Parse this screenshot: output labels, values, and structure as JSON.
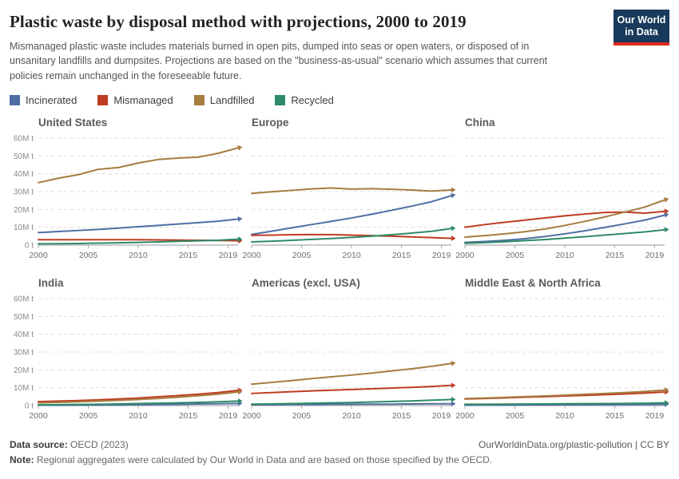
{
  "header": {
    "title": "Plastic waste by disposal method with projections, 2000 to 2019",
    "subtitle": "Mismanaged plastic waste includes materials burned in open pits, dumped into seas or open waters, or disposed of in unsanitary landfills and dumpsites. Projections are based on the \"business-as-usual\" scenario which assumes that current policies remain unchanged in the foreseeable future.",
    "logo_line1": "Our World",
    "logo_line2": "in Data",
    "logo_bg": "#183A5C",
    "logo_stripe": "#DB2B1E"
  },
  "legend": {
    "items": [
      {
        "label": "Incinerated",
        "color": "#4E6EA3"
      },
      {
        "label": "Mismanaged",
        "color": "#BF3B21"
      },
      {
        "label": "Landfilled",
        "color": "#A67C3F"
      },
      {
        "label": "Recycled",
        "color": "#2E8A68"
      }
    ]
  },
  "colors": {
    "incinerated": "#4E6EA3",
    "mismanaged": "#BF3B21",
    "landfilled": "#A67C3F",
    "recycled": "#2E8A68",
    "gridline": "#DCDCDC",
    "axis": "#ABABAB",
    "ytick_text": "#8a8a8a",
    "xtick_text": "#6e6e6e"
  },
  "axis": {
    "ylim": [
      0,
      60
    ],
    "yticks": [
      0,
      10,
      20,
      30,
      40,
      50,
      60
    ],
    "ytick_unit": "M t",
    "ytick_zero": "0 t",
    "xlim": [
      2000,
      2020
    ],
    "xticks": [
      2000,
      2005,
      2010,
      2015,
      2019
    ],
    "grid": "dashed-horizontal",
    "legend_position": "top"
  },
  "chart_data": [
    {
      "type": "line",
      "title": "United States",
      "x": [
        2000,
        2002,
        2004,
        2006,
        2008,
        2010,
        2012,
        2014,
        2016,
        2018,
        2019
      ],
      "series": [
        {
          "name": "incinerated",
          "values": [
            7,
            7.6,
            8.2,
            8.8,
            9.5,
            10.3,
            11,
            11.8,
            12.6,
            13.4,
            14
          ]
        },
        {
          "name": "mismanaged",
          "values": [
            3,
            3,
            3,
            3,
            3,
            3,
            2.9,
            2.8,
            2.7,
            2.6,
            2.5
          ]
        },
        {
          "name": "landfilled",
          "values": [
            35,
            37.5,
            39.5,
            42.5,
            43.5,
            46,
            48,
            48.8,
            49.3,
            51.5,
            53
          ]
        },
        {
          "name": "recycled",
          "values": [
            0.7,
            0.8,
            0.9,
            1.1,
            1.3,
            1.5,
            1.8,
            2.1,
            2.4,
            2.7,
            3
          ]
        }
      ]
    },
    {
      "type": "line",
      "title": "Europe",
      "x": [
        2000,
        2002,
        2004,
        2006,
        2008,
        2010,
        2012,
        2014,
        2016,
        2018,
        2019
      ],
      "series": [
        {
          "name": "incinerated",
          "values": [
            6,
            7.8,
            9.7,
            11.5,
            13.3,
            15.2,
            17.3,
            19.5,
            21.8,
            24.3,
            26
          ]
        },
        {
          "name": "mismanaged",
          "values": [
            5.5,
            5.6,
            5.8,
            5.9,
            5.9,
            5.6,
            5.3,
            5,
            4.6,
            4.2,
            4
          ]
        },
        {
          "name": "landfilled",
          "values": [
            29,
            29.9,
            30.7,
            31.5,
            32,
            31.4,
            31.6,
            31.3,
            30.9,
            30.3,
            30.6
          ]
        },
        {
          "name": "recycled",
          "values": [
            1.8,
            2.2,
            2.7,
            3.2,
            3.7,
            4.3,
            5,
            5.8,
            6.7,
            7.7,
            8.5
          ]
        }
      ]
    },
    {
      "type": "line",
      "title": "China",
      "x": [
        2000,
        2002,
        2004,
        2006,
        2008,
        2010,
        2012,
        2014,
        2016,
        2018,
        2019
      ],
      "series": [
        {
          "name": "incinerated",
          "values": [
            1.5,
            2,
            2.7,
            3.6,
            4.8,
            6.3,
            8,
            9.9,
            11.9,
            14,
            15.4
          ]
        },
        {
          "name": "mismanaged",
          "values": [
            10,
            11.5,
            12.8,
            14,
            15.2,
            16.4,
            17.4,
            18.3,
            18.5,
            17.9,
            18.4
          ]
        },
        {
          "name": "landfilled",
          "values": [
            4.5,
            5.3,
            6.3,
            7.5,
            9,
            11,
            13.3,
            15.8,
            18.5,
            21.3,
            23.3
          ]
        },
        {
          "name": "recycled",
          "values": [
            1,
            1.4,
            1.9,
            2.5,
            3.1,
            3.9,
            4.7,
            5.6,
            6.5,
            7.4,
            8
          ]
        }
      ]
    },
    {
      "type": "line",
      "title": "India",
      "x": [
        2000,
        2002,
        2004,
        2006,
        2008,
        2010,
        2012,
        2014,
        2016,
        2018,
        2019
      ],
      "series": [
        {
          "name": "incinerated",
          "values": [
            0.2,
            0.2,
            0.3,
            0.3,
            0.4,
            0.5,
            0.6,
            0.7,
            0.9,
            1,
            1.1
          ]
        },
        {
          "name": "mismanaged",
          "values": [
            2.2,
            2.5,
            2.8,
            3.2,
            3.7,
            4.2,
            4.9,
            5.6,
            6.4,
            7.3,
            7.9
          ]
        },
        {
          "name": "landfilled",
          "values": [
            1.5,
            1.8,
            2.1,
            2.5,
            2.9,
            3.4,
            4,
            4.7,
            5.5,
            6.4,
            7
          ]
        },
        {
          "name": "recycled",
          "values": [
            0.4,
            0.5,
            0.6,
            0.7,
            0.9,
            1.1,
            1.3,
            1.5,
            1.8,
            2.1,
            2.3
          ]
        }
      ]
    },
    {
      "type": "line",
      "title": "Americas (excl. USA)",
      "x": [
        2000,
        2002,
        2004,
        2006,
        2008,
        2010,
        2012,
        2014,
        2016,
        2018,
        2019
      ],
      "series": [
        {
          "name": "incinerated",
          "values": [
            0.5,
            0.5,
            0.6,
            0.6,
            0.7,
            0.7,
            0.8,
            0.8,
            0.9,
            1,
            1
          ]
        },
        {
          "name": "mismanaged",
          "values": [
            6.8,
            7.3,
            7.8,
            8.2,
            8.6,
            9,
            9.4,
            9.8,
            10.2,
            10.7,
            11
          ]
        },
        {
          "name": "landfilled",
          "values": [
            12,
            13,
            14,
            15.1,
            16.1,
            17.1,
            18.2,
            19.4,
            20.6,
            22,
            22.8
          ]
        },
        {
          "name": "recycled",
          "values": [
            0.8,
            0.9,
            1.1,
            1.3,
            1.5,
            1.7,
            2,
            2.3,
            2.6,
            3,
            3.2
          ]
        }
      ]
    },
    {
      "type": "line",
      "title": "Middle East & North Africa",
      "x": [
        2000,
        2002,
        2004,
        2006,
        2008,
        2010,
        2012,
        2014,
        2016,
        2018,
        2019
      ],
      "series": [
        {
          "name": "incinerated",
          "values": [
            0.3,
            0.32,
            0.35,
            0.38,
            0.4,
            0.45,
            0.5,
            0.52,
            0.55,
            0.6,
            0.65
          ]
        },
        {
          "name": "mismanaged",
          "values": [
            3.7,
            4,
            4.3,
            4.7,
            5,
            5.4,
            5.7,
            6.1,
            6.5,
            7,
            7.3
          ]
        },
        {
          "name": "landfilled",
          "values": [
            3.9,
            4.2,
            4.6,
            5,
            5.4,
            5.8,
            6.3,
            6.8,
            7.3,
            7.9,
            8.3
          ]
        },
        {
          "name": "recycled",
          "values": [
            0.7,
            0.75,
            0.8,
            0.85,
            0.9,
            1,
            1.05,
            1.1,
            1.2,
            1.3,
            1.4
          ]
        }
      ]
    }
  ],
  "footer": {
    "source_label": "Data source:",
    "source_value": " OECD (2023)",
    "link": "OurWorldinData.org/plastic-pollution | CC BY",
    "note_label": "Note:",
    "note_value": " Regional aggregates were calculated by Our World in Data and are based on those specified by the OECD."
  }
}
